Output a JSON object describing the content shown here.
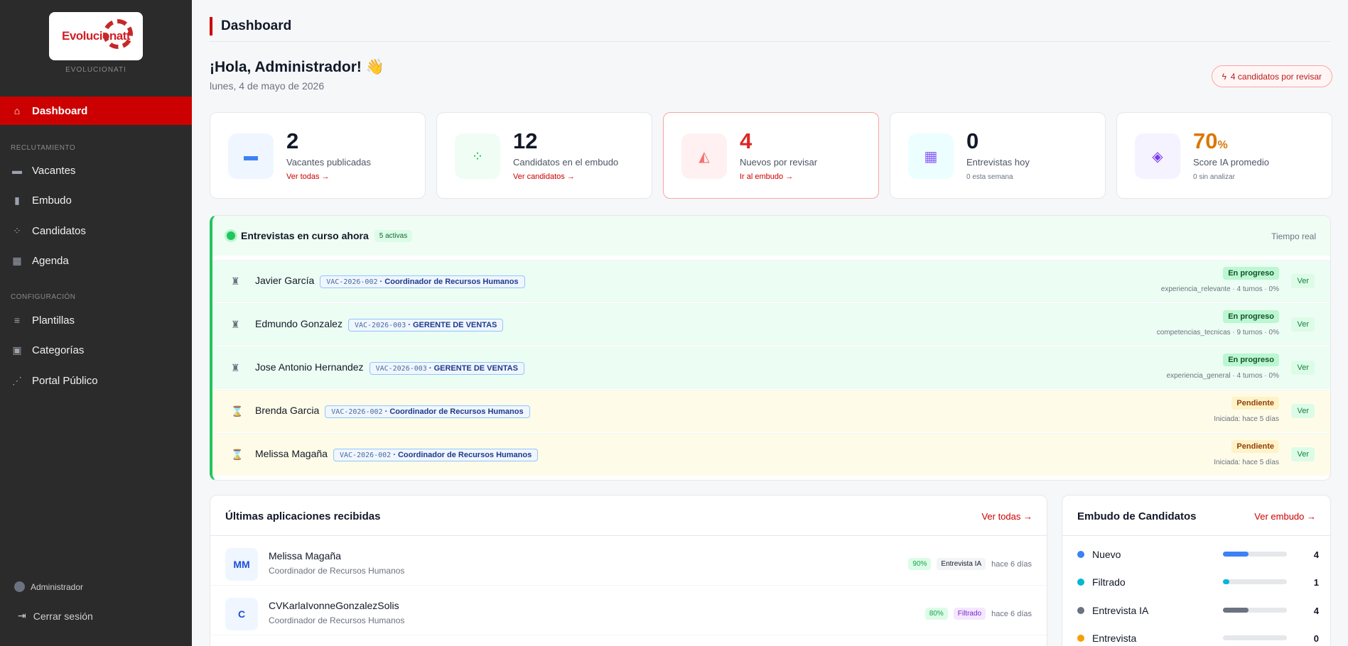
{
  "sidebar": {
    "brand": "EVOLUCIONATI",
    "logo_text": "Evolucionatt",
    "nav_dashboard": "Dashboard",
    "section_recruit": "RECLUTAMIENTO",
    "nav_vacantes": "Vacantes",
    "nav_embudo": "Embudo",
    "nav_candidatos": "Candidatos",
    "nav_agenda": "Agenda",
    "section_config": "CONFIGURACIÓN",
    "nav_plantillas": "Plantillas",
    "nav_categorias": "Categorías",
    "nav_portal": "Portal Público",
    "user": "Administrador",
    "logout": "Cerrar sesión"
  },
  "header": {
    "title": "Dashboard",
    "greeting": "¡Hola, Administrador! 👋",
    "date": "lunes, 4 de mayo de 2026",
    "alert": "4 candidatos por revisar"
  },
  "stats": [
    {
      "value": "2",
      "label": "Vacantes publicadas",
      "link": "Ver todas →"
    },
    {
      "value": "12",
      "label": "Candidatos en el embudo",
      "link": "Ver candidatos →"
    },
    {
      "value": "4",
      "label": "Nuevos por revisar",
      "link": "Ir al embudo →"
    },
    {
      "value": "0",
      "label": "Entrevistas hoy",
      "sub": "0 esta semana"
    },
    {
      "value": "70",
      "unit": "%",
      "label": "Score IA promedio",
      "sub": "0 sin analizar"
    }
  ],
  "live": {
    "title": "Entrevistas en curso ahora",
    "badge": "5 activas",
    "realtime": "Tiempo real",
    "view": "Ver",
    "rows": [
      {
        "name": "Javier García",
        "code": "VAC-2026-002",
        "position": "Coordinador de Recursos Humanos",
        "status": "En progreso",
        "meta": "experiencia_relevante · 4 turnos · 0%"
      },
      {
        "name": "Edmundo Gonzalez",
        "code": "VAC-2026-003",
        "position": "GERENTE DE VENTAS",
        "status": "En progreso",
        "meta": "competencias_tecnicas · 9 turnos · 0%"
      },
      {
        "name": "Jose Antonio Hernandez",
        "code": "VAC-2026-003",
        "position": "GERENTE DE VENTAS",
        "status": "En progreso",
        "meta": "experiencia_general · 4 turnos · 0%"
      },
      {
        "name": "Brenda Garcia",
        "code": "VAC-2026-002",
        "position": "Coordinador de Recursos Humanos",
        "status": "Pendiente",
        "meta": "Iniciada: hace 5 días"
      },
      {
        "name": "Melissa Magaña",
        "code": "VAC-2026-002",
        "position": "Coordinador de Recursos Humanos",
        "status": "Pendiente",
        "meta": "Iniciada: hace 5 días"
      }
    ]
  },
  "applications": {
    "title": "Últimas aplicaciones recibidas",
    "link": "Ver todas →",
    "items": [
      {
        "initials": "MM",
        "name": "Melissa Magaña",
        "position": "Coordinador de Recursos Humanos",
        "score": "90%",
        "tag": "Entrevista IA",
        "ago": "hace 6 días"
      },
      {
        "initials": "C",
        "name": "CVKarlaIvonneGonzalezSolis",
        "position": "Coordinador de Recursos Humanos",
        "score": "80%",
        "tag": "Filtrado",
        "ago": "hace 6 días"
      }
    ]
  },
  "funnel": {
    "title": "Embudo de Candidatos",
    "link": "Ver embudo →",
    "stages": [
      {
        "label": "Nuevo",
        "count": "4",
        "fraction": 0.4,
        "color": "#3b82f6"
      },
      {
        "label": "Filtrado",
        "count": "1",
        "fraction": 0.1,
        "color": "#06b6d4"
      },
      {
        "label": "Entrevista IA",
        "count": "4",
        "fraction": 0.4,
        "color": "#6b7280"
      },
      {
        "label": "Entrevista",
        "count": "0",
        "fraction": 0,
        "color": "#f59e0b"
      }
    ]
  }
}
